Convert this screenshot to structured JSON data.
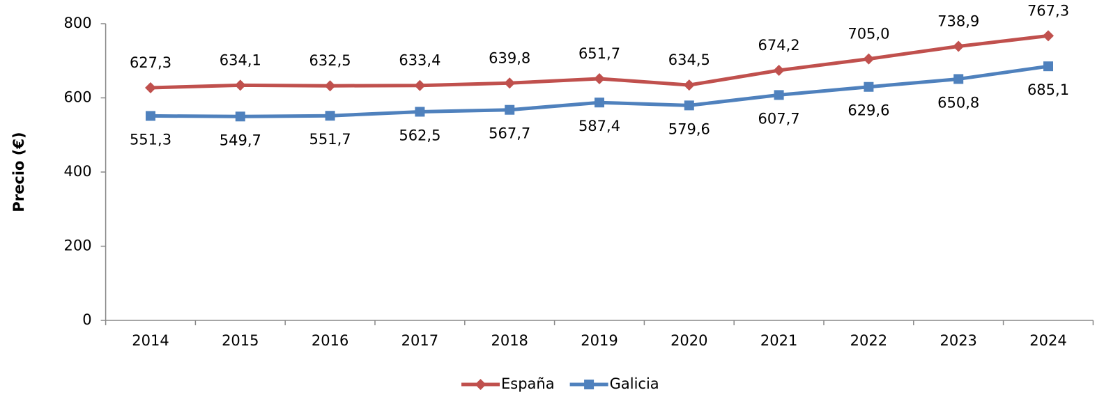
{
  "chart_data": {
    "type": "line",
    "y_label": "Precio (€)",
    "categories": [
      "2014",
      "2015",
      "2016",
      "2017",
      "2018",
      "2019",
      "2020",
      "2021",
      "2022",
      "2023",
      "2024"
    ],
    "series": [
      {
        "name": "España",
        "color": "#c0504d",
        "marker": "diamond",
        "values": [
          627.3,
          634.1,
          632.5,
          633.4,
          639.8,
          651.7,
          634.5,
          674.2,
          705.0,
          738.9,
          767.3
        ],
        "value_labels": [
          "627,3",
          "634,1",
          "632,5",
          "633,4",
          "639,8",
          "651,7",
          "634,5",
          "674,2",
          "705,0",
          "738,9",
          "767,3"
        ]
      },
      {
        "name": "Galicia",
        "color": "#4f81bd",
        "marker": "square",
        "values": [
          551.3,
          549.7,
          551.7,
          562.5,
          567.7,
          587.4,
          579.6,
          607.7,
          629.6,
          650.8,
          685.1
        ],
        "value_labels": [
          "551,3",
          "549,7",
          "551,7",
          "562,5",
          "567,7",
          "587,4",
          "579,6",
          "607,7",
          "629,6",
          "650,8",
          "685,1"
        ]
      }
    ],
    "ylim": [
      0,
      800
    ],
    "yticks": [
      0,
      200,
      400,
      600,
      800
    ],
    "grid": false,
    "legend": "bottom"
  }
}
